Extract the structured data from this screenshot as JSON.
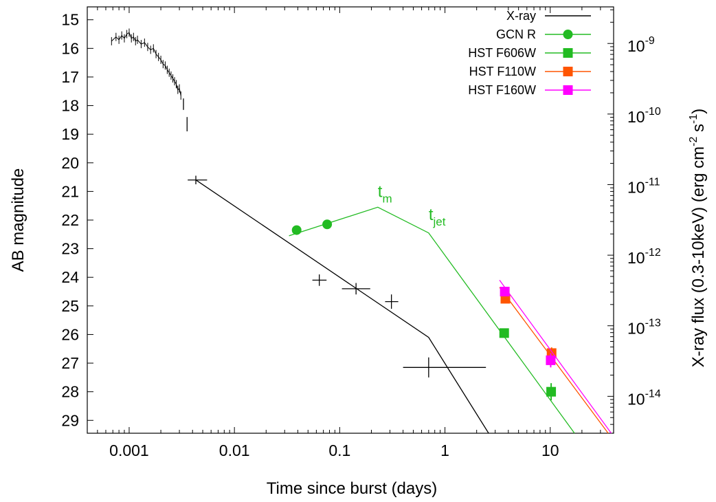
{
  "chart_data": {
    "type": "scatter",
    "xlabel": "Time since burst (days)",
    "ylabel": "AB magnitude",
    "y2label": {
      "pre": "X-ray flux (0.3-10keV) (erg cm",
      "exp1": "-2",
      "mid": " s",
      "exp2": "-1",
      "post": ")"
    },
    "x_scale": "log",
    "xlim": [
      0.0004,
      40
    ],
    "ylim": [
      29.45,
      14.55
    ],
    "y2_scale": "log",
    "y2lim": [
      3e-15,
      3.3e-09
    ],
    "x_ticks": [
      {
        "v": 0.001,
        "label": "0.001"
      },
      {
        "v": 0.01,
        "label": "0.01"
      },
      {
        "v": 0.1,
        "label": "0.1"
      },
      {
        "v": 1,
        "label": "1"
      },
      {
        "v": 10,
        "label": "10"
      }
    ],
    "y_ticks": [
      15,
      16,
      17,
      18,
      19,
      20,
      21,
      22,
      23,
      24,
      25,
      26,
      27,
      28,
      29
    ],
    "y2_ticks": [
      {
        "v": 1e-09,
        "base": "10",
        "exp": "-9"
      },
      {
        "v": 1e-10,
        "base": "10",
        "exp": "-10"
      },
      {
        "v": 1e-11,
        "base": "10",
        "exp": "-11"
      },
      {
        "v": 1e-12,
        "base": "10",
        "exp": "-12"
      },
      {
        "v": 1e-13,
        "base": "10",
        "exp": "-13"
      },
      {
        "v": 1e-14,
        "base": "10",
        "exp": "-14"
      }
    ],
    "legend_position": "top-right",
    "series": [
      {
        "name": "X-ray",
        "color": "#000000",
        "marker": "none",
        "model": [
          [
            0.0043,
            20.6
          ],
          [
            0.7,
            26.1
          ],
          [
            2.6,
            29.45
          ]
        ],
        "points_mag": [
          {
            "t": 0.0043,
            "m": 20.6,
            "tlo": 0.0036,
            "thi": 0.0055,
            "merr": 0.15
          },
          {
            "t": 0.064,
            "m": 24.1,
            "tlo": 0.055,
            "thi": 0.075,
            "merr": 0.2
          },
          {
            "t": 0.143,
            "m": 24.4,
            "tlo": 0.105,
            "thi": 0.195,
            "merr": 0.2
          },
          {
            "t": 0.31,
            "m": 24.85,
            "tlo": 0.27,
            "thi": 0.36,
            "merr": 0.25
          },
          {
            "t": 0.7,
            "m": 27.15,
            "tlo": 0.4,
            "thi": 2.45,
            "merr": 0.35
          },
          {
            "t": 0.00355,
            "m": 18.65,
            "tlo": 0.00355,
            "thi": 0.00355,
            "merr": 0.25
          },
          {
            "t": 0.00328,
            "m": 17.95,
            "tlo": 0.00328,
            "thi": 0.00328,
            "merr": 0.2
          }
        ],
        "early_curve": [
          [
            0.00068,
            15.75
          ],
          [
            0.00075,
            15.6
          ],
          [
            0.0008,
            15.7
          ],
          [
            0.00085,
            15.55
          ],
          [
            0.0009,
            15.65
          ],
          [
            0.00095,
            15.5
          ],
          [
            0.001,
            15.45
          ],
          [
            0.00105,
            15.65
          ],
          [
            0.0011,
            15.6
          ],
          [
            0.00115,
            15.75
          ],
          [
            0.0012,
            15.7
          ],
          [
            0.0013,
            15.85
          ],
          [
            0.0014,
            15.8
          ],
          [
            0.0015,
            15.95
          ],
          [
            0.0016,
            16.05
          ],
          [
            0.0017,
            16.0
          ],
          [
            0.0018,
            16.2
          ],
          [
            0.0019,
            16.3
          ],
          [
            0.002,
            16.4
          ],
          [
            0.0021,
            16.55
          ],
          [
            0.0022,
            16.6
          ],
          [
            0.0023,
            16.75
          ],
          [
            0.0024,
            16.85
          ],
          [
            0.0025,
            16.95
          ],
          [
            0.0026,
            17.05
          ],
          [
            0.0027,
            17.15
          ],
          [
            0.0028,
            17.25
          ],
          [
            0.0029,
            17.45
          ],
          [
            0.003,
            17.4
          ],
          [
            0.0031,
            17.65
          ]
        ]
      },
      {
        "name": "GCN R",
        "color": "#22bb22",
        "marker": "circle",
        "model": [
          [
            0.033,
            22.55
          ],
          [
            0.23,
            21.55
          ],
          [
            0.7,
            22.45
          ],
          [
            17,
            29.45
          ]
        ],
        "points": [
          {
            "t": 0.039,
            "m": 22.35
          },
          {
            "t": 0.076,
            "m": 22.15
          }
        ]
      },
      {
        "name": "HST F606W",
        "color": "#22bb22",
        "marker": "square",
        "points": [
          {
            "t": 3.65,
            "m": 25.95,
            "merr": 0.12
          },
          {
            "t": 10.2,
            "m": 28.0,
            "merr": 0.3
          }
        ]
      },
      {
        "name": "HST F110W",
        "color": "#ff5500",
        "marker": "square",
        "model": [
          [
            3.3,
            24.35
          ],
          [
            35.5,
            29.45
          ]
        ],
        "points": [
          {
            "t": 3.75,
            "m": 24.75,
            "merr": 0.08
          },
          {
            "t": 10.3,
            "m": 26.65,
            "merr": 0.2
          }
        ]
      },
      {
        "name": "HST F160W",
        "color": "#ff00ff",
        "marker": "square",
        "model": [
          [
            3.3,
            24.1
          ],
          [
            38,
            29.45
          ]
        ],
        "points": [
          {
            "t": 3.7,
            "m": 24.5,
            "merr": 0.06
          },
          {
            "t": 10.1,
            "m": 26.9,
            "merr": 0.25
          }
        ]
      }
    ],
    "annotations": [
      {
        "base": "t",
        "sub": "m",
        "t": 0.23,
        "m": 21.2,
        "color": "#22bb22"
      },
      {
        "base": "t",
        "sub": "jet",
        "t": 0.7,
        "m": 22.0,
        "color": "#22bb22"
      }
    ]
  }
}
